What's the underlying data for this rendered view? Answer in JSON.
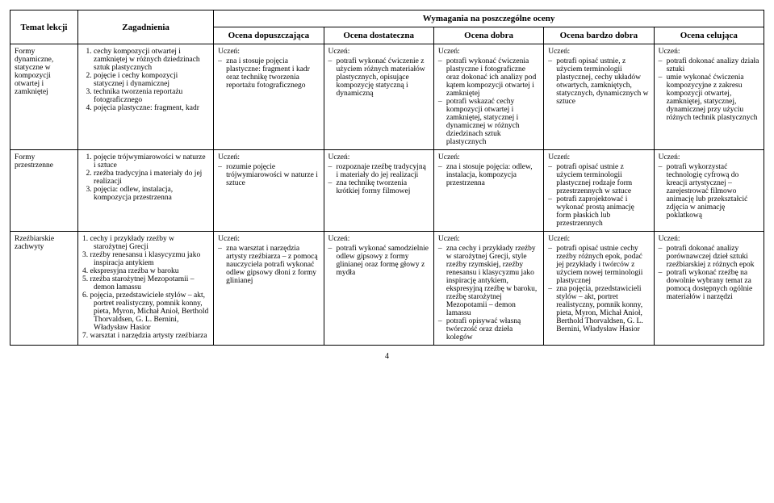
{
  "headers": {
    "temat": "Temat lekcji",
    "zagadnienia": "Zagadnienia",
    "wymagania": "Wymagania na poszczególne oceny",
    "grades": {
      "dopuszczajaca": "Ocena\ndopuszczająca",
      "dostateczna": "Ocena\ndostateczna",
      "dobra": "Ocena\ndobra",
      "bardzo_dobra": "Ocena\nbardzo dobra",
      "celujaca": "Ocena\ncelująca"
    }
  },
  "uczen": "Uczeń:",
  "rows": [
    {
      "temat": "Formy dynamiczne, statyczne w kompozycji otwartej i zamkniętej",
      "zagadnienia": [
        "cechy kompozycji otwartej i zamkniętej w różnych dziedzinach sztuk plastycznych",
        "pojęcie i cechy kompozycji statycznej i dynamicznej",
        "technika tworzenia reportażu fotograficznego",
        "pojęcia plastyczne: fragment, kadr"
      ],
      "g1": [
        "zna i stosuje pojęcia plastyczne: fragment i kadr oraz technikę tworzenia reportażu fotograficznego"
      ],
      "g2": [
        "potrafi wykonać ćwiczenie z użyciem różnych materiałów plastycznych, opisujące kompozycję statyczną i dynamiczną"
      ],
      "g3": [
        "potrafi wykonać ćwiczenia plastyczne i fotograficzne oraz dokonać ich analizy pod kątem kompozycji otwartej i zamkniętej",
        "potrafi wskazać cechy kompozycji otwartej i zamkniętej, statycznej i dynamicznej w różnych dziedzinach sztuk plastycznych"
      ],
      "g4": [
        "potrafi opisać ustnie, z użyciem terminologii plastycznej, cechy układów otwartych, zamkniętych, statycznych, dynamicznych w sztuce"
      ],
      "g5": [
        "potrafi dokonać analizy działa sztuki",
        "umie wykonać ćwiczenia kompozycyjne z zakresu kompozycji otwartej, zamkniętej, statycznej, dynamicznej przy użyciu różnych technik plastycznych"
      ]
    },
    {
      "temat": "Formy przestrzenne",
      "zagadnienia": [
        "pojęcie trójwymiarowości w naturze i sztuce",
        "rzeźba tradycyjna i materiały do jej realizacji",
        "pojęcia: odlew, instalacja, kompozycja przestrzenna"
      ],
      "g1": [
        "rozumie pojęcie trójwymiarowości w naturze i sztuce"
      ],
      "g2": [
        "rozpoznaje rzeźbę tradycyjną i materiały do jej realizacji",
        "zna technikę tworzenia krótkiej formy filmowej"
      ],
      "g3": [
        "zna i stosuje pojęcia: odlew, instalacja, kompozycja przestrzenna"
      ],
      "g4": [
        "potrafi opisać ustnie z użyciem terminologii plastycznej rodzaje form przestrzennych w sztuce",
        "potrafi zaprojektować i wykonać prostą animację form płaskich lub przestrzennych"
      ],
      "g5": [
        "potrafi wykorzystać technologię cyfrową do kreacji artystycznej – zarejestrować filmowo animację lub przekształcić zdjęcia w animację poklatkową"
      ]
    },
    {
      "temat": "Rzeźbiarskie zachwyty",
      "zagadnienia": [
        "cechy i przykłady rzeźby w starożytnej Grecji",
        "rzeźby renesansu i klasycyzmu jako inspiracja antykiem",
        "ekspresyjna rzeźba w baroku",
        "rzeźba starożytnej Mezopotamii – demon lamassu",
        "pojęcia, przedstawiciele stylów – akt, portret realistyczny, pomnik konny, pieta, Myron, Michał Anioł, Berthold Thorvaldsen, G. L. Bernini, Władysław Hasior",
        "warsztat i narzędzia artysty rzeźbiarza"
      ],
      "zagad_start": 1,
      "zagad_skip": [
        2
      ],
      "g1": [
        "zna warsztat i narzędzia artysty rzeźbiarza – z pomocą nauczyciela potrafi wykonać odlew gipsowy dłoni z formy glinianej"
      ],
      "g2": [
        "potrafi wykonać samodzielnie odlew gipsowy z formy glinianej oraz formę głowy z mydła"
      ],
      "g3": [
        "zna cechy i przykłady rzeźby w starożytnej Grecji, style rzeźby rzymskiej, rzeźby renesansu i klasycyzmu jako inspirację antykiem, ekspresyjną rzeźbę w baroku, rzeźbę starożytnej Mezopotamii – demon lamassu",
        "potrafi opisywać własną twórczość oraz dzieła kolegów"
      ],
      "g4": [
        "potrafi opisać ustnie cechy rzeźby różnych epok, podać jej przykłady i twórców z użyciem nowej terminologii plastycznej",
        "zna pojęcia, przedstawicieli stylów – akt, portret realistyczny, pomnik konny, pieta, Myron, Michał Anioł, Berthold Thorvaldsen, G. L. Bernini, Władysław Hasior"
      ],
      "g5": [
        "potrafi dokonać analizy porównawczej dzieł sztuki rzeźbiarskiej z różnych epok",
        "potrafi wykonać rzeźbę na dowolnie wybrany temat za pomocą dostępnych ogólnie materiałów i narzędzi"
      ]
    }
  ],
  "page": "4"
}
